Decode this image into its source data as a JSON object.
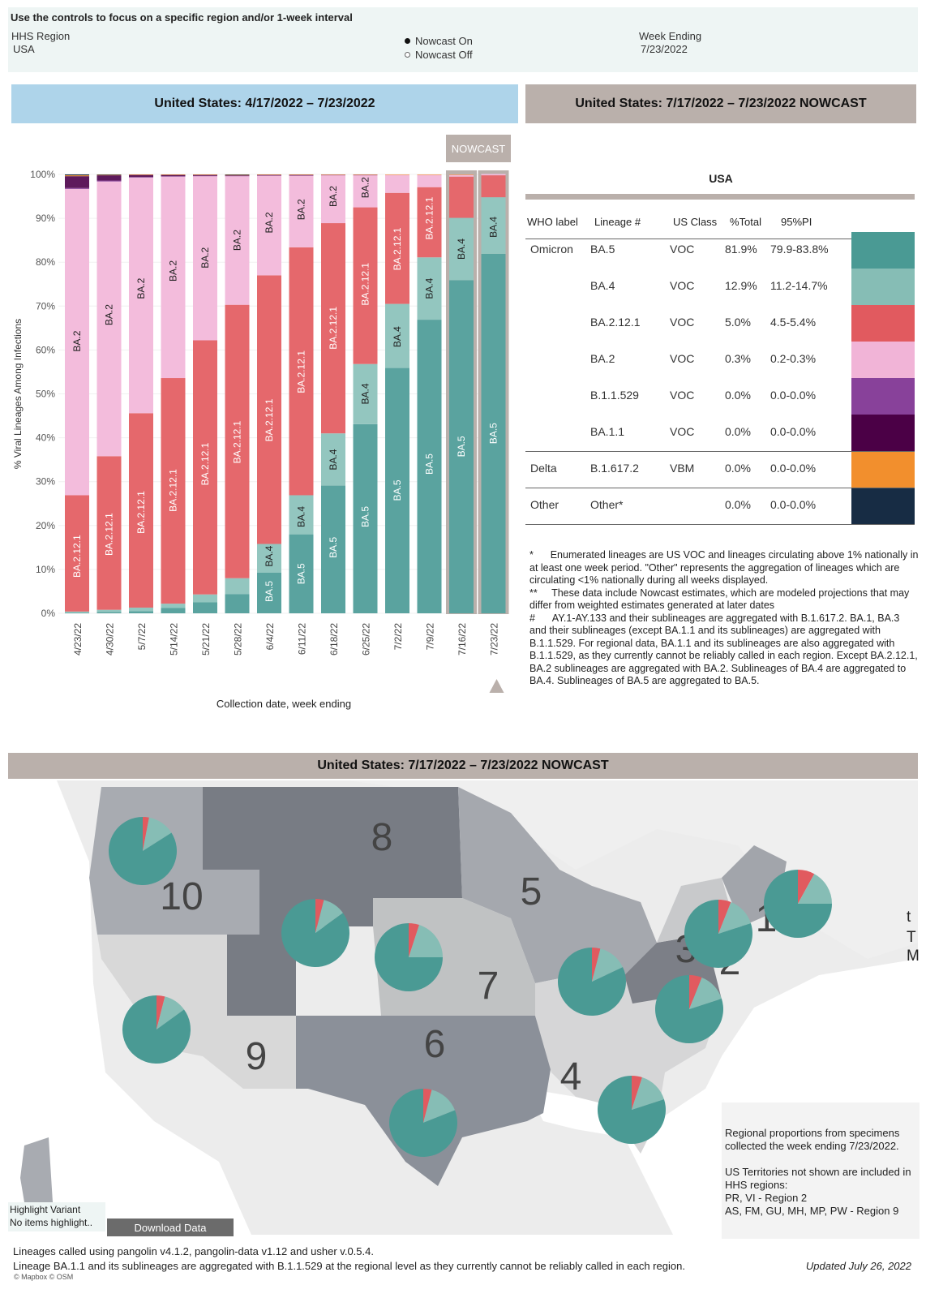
{
  "controls": {
    "title": "Use the controls to focus on a specific region and/or 1-week interval",
    "region_label": "HHS Region",
    "region_value": "USA",
    "nowcast_on": "Nowcast On",
    "nowcast_off": "Nowcast Off",
    "nowcast_selected": "on",
    "week_label": "Week Ending",
    "week_value": "7/23/2022"
  },
  "headers": {
    "left": "United States: 4/17/2022 – 7/23/2022",
    "right": "United States: 7/17/2022 – 7/23/2022 NOWCAST",
    "map": "United States: 7/17/2022 – 7/23/2022 NOWCAST"
  },
  "colors": {
    "BA.5": "#5aa39f",
    "BA.4": "#93c6bf",
    "BA.2.12.1": "#e5686c",
    "BA.2": "#f3bcdc",
    "B.1.1.529": "#87409a",
    "BA.1.1": "#5e1a5c",
    "B.1.617.2": "#f28f2d",
    "Other": "#172c44",
    "nowcast": "#bab0ab"
  },
  "chart_data": {
    "type": "bar",
    "stacked": true,
    "title": "United States: 4/17/2022 – 7/23/2022",
    "xlabel": "Collection date, week ending",
    "ylabel": "% Viral Lineages Among Infections",
    "ylim": [
      0,
      100
    ],
    "yticks": [
      "0%",
      "10%",
      "20%",
      "30%",
      "40%",
      "50%",
      "60%",
      "70%",
      "80%",
      "90%",
      "100%"
    ],
    "nowcast_label": "NOWCAST",
    "nowcast_categories": [
      "7/16/22",
      "7/23/22"
    ],
    "categories": [
      "4/23/22",
      "4/30/22",
      "5/7/22",
      "5/14/22",
      "5/21/22",
      "5/28/22",
      "6/4/22",
      "6/11/22",
      "6/18/22",
      "6/25/22",
      "7/2/22",
      "7/9/22",
      "7/16/22",
      "7/23/22"
    ],
    "series": [
      {
        "name": "BA.5",
        "values": [
          0.1,
          0.3,
          0.5,
          1.2,
          2.5,
          4.4,
          9.3,
          18.0,
          29.1,
          43.1,
          55.9,
          66.9,
          75.9,
          81.9
        ]
      },
      {
        "name": "BA.4",
        "values": [
          0.3,
          0.5,
          0.8,
          1.0,
          1.8,
          3.6,
          6.5,
          8.9,
          11.9,
          13.7,
          14.6,
          14.2,
          14.2,
          12.9
        ]
      },
      {
        "name": "BA.2.12.1",
        "values": [
          26.5,
          35.0,
          44.3,
          51.4,
          57.9,
          62.3,
          61.2,
          56.5,
          47.9,
          35.7,
          25.3,
          16.0,
          9.4,
          5.0
        ]
      },
      {
        "name": "BA.2",
        "values": [
          69.8,
          62.6,
          53.7,
          45.9,
          37.4,
          29.3,
          22.7,
          16.3,
          10.9,
          7.3,
          4.1,
          2.8,
          0.4,
          0.3
        ]
      },
      {
        "name": "B.1.1.529",
        "values": [
          0.2,
          0.2,
          0.1,
          0.1,
          0.1,
          0.1,
          0.1,
          0.1,
          0.1,
          0.1,
          0.0,
          0.0,
          0.0,
          0.0
        ]
      },
      {
        "name": "BA.1.1",
        "values": [
          2.7,
          1.2,
          0.5,
          0.3,
          0.2,
          0.1,
          0.1,
          0.1,
          0.0,
          0.0,
          0.0,
          0.0,
          0.0,
          0.0
        ]
      },
      {
        "name": "B.1.617.2",
        "values": [
          0.2,
          0.1,
          0.1,
          0.1,
          0.1,
          0.1,
          0.1,
          0.1,
          0.1,
          0.1,
          0.1,
          0.1,
          0.1,
          0.0
        ]
      },
      {
        "name": "Other",
        "values": [
          0.2,
          0.1,
          0.0,
          0.0,
          0.0,
          0.1,
          0.0,
          0.0,
          0.0,
          0.0,
          0.0,
          0.0,
          0.0,
          0.0
        ]
      }
    ],
    "bar_labels": [
      [
        [
          "BA.2.12.1",
          13
        ],
        [
          "BA.2",
          62
        ]
      ],
      [
        [
          "BA.2.12.1",
          18
        ],
        [
          "BA.2",
          68
        ]
      ],
      [
        [
          "BA.2.12.1",
          23
        ],
        [
          "BA.2",
          74
        ]
      ],
      [
        [
          "BA.2.12.1",
          28
        ],
        [
          "BA.2",
          78
        ]
      ],
      [
        [
          "BA.2.12.1",
          34
        ],
        [
          "BA.2",
          81
        ]
      ],
      [
        [
          "BA.2.12.1",
          39
        ],
        [
          "BA.2",
          85
        ]
      ],
      [
        [
          "BA.5",
          5
        ],
        [
          "BA.4",
          13
        ],
        [
          "BA.2.12.1",
          44
        ],
        [
          "BA.2",
          89
        ]
      ],
      [
        [
          "BA.5",
          9
        ],
        [
          "BA.4",
          22
        ],
        [
          "BA.2.12.1",
          55
        ],
        [
          "BA.2",
          92
        ]
      ],
      [
        [
          "BA.5",
          15
        ],
        [
          "BA.4",
          35
        ],
        [
          "BA.2.12.1",
          65
        ],
        [
          "BA.2",
          95
        ]
      ],
      [
        [
          "BA.5",
          22
        ],
        [
          "BA.4",
          50
        ],
        [
          "BA.2.12.1",
          75
        ],
        [
          "BA.2",
          97
        ]
      ],
      [
        [
          "BA.5",
          28
        ],
        [
          "BA.4",
          63
        ],
        [
          "BA.2.12.1",
          83
        ]
      ],
      [
        [
          "BA.5",
          34
        ],
        [
          "BA.4",
          74
        ],
        [
          "BA.2.12.1",
          90
        ]
      ],
      [
        [
          "BA.5",
          38
        ],
        [
          "BA.4",
          83
        ]
      ],
      [
        [
          "BA.5",
          41
        ],
        [
          "BA.4",
          88
        ]
      ]
    ]
  },
  "table": {
    "region": "USA",
    "columns": [
      "WHO label",
      "Lineage #",
      "US Class",
      "%Total",
      "95%PI"
    ],
    "rows": [
      {
        "who": "Omicron",
        "lineage": "BA.5",
        "class": "VOC",
        "total": "81.9%",
        "pi": "79.9-83.8%",
        "color": "#4a9a94"
      },
      {
        "who": "",
        "lineage": "BA.4",
        "class": "VOC",
        "total": "12.9%",
        "pi": "11.2-14.7%",
        "color": "#86bdb5"
      },
      {
        "who": "",
        "lineage": "BA.2.12.1",
        "class": "VOC",
        "total": "5.0%",
        "pi": "4.5-5.4%",
        "color": "#e15a5f"
      },
      {
        "who": "",
        "lineage": "BA.2",
        "class": "VOC",
        "total": "0.3%",
        "pi": "0.2-0.3%",
        "color": "#f1b4d7"
      },
      {
        "who": "",
        "lineage": "B.1.1.529",
        "class": "VOC",
        "total": "0.0%",
        "pi": "0.0-0.0%",
        "color": "#88419a"
      },
      {
        "who": "",
        "lineage": "BA.1.1",
        "class": "VOC",
        "total": "0.0%",
        "pi": "0.0-0.0%",
        "color": "#4b0046"
      },
      {
        "who": "Delta",
        "lineage": "B.1.617.2",
        "class": "VBM",
        "total": "0.0%",
        "pi": "0.0-0.0%",
        "color": "#f28f2d"
      },
      {
        "who": "Other",
        "lineage": "Other*",
        "class": "",
        "total": "0.0%",
        "pi": "0.0-0.0%",
        "color": "#172c44"
      }
    ]
  },
  "notes": [
    "*      Enumerated lineages are US VOC and lineages circulating above 1% nationally in at least one week period. \"Other\" represents the aggregation of lineages which are circulating <1% nationally during all weeks displayed.",
    "**     These data include Nowcast estimates, which are modeled projections that may differ from weighted estimates generated at later dates",
    "#      AY.1-AY.133 and their sublineages are aggregated with B.1.617.2. BA.1, BA.3 and their sublineages (except BA.1.1 and its sublineages) are aggregated with B.1.1.529. For regional data, BA.1.1 and its sublineages are also aggregated with B.1.1.529, as they currently cannot be reliably called in each region. Except BA.2.12.1, BA.2 sublineages are aggregated with BA.2. Sublineages of BA.4 are aggregated to BA.4. Sublineages of BA.5 are aggregated to BA.5."
  ],
  "map": {
    "regions": [
      {
        "id": "1",
        "label": "1",
        "pie": {
          "BA.5": 80,
          "BA.4": 14,
          "BA.2.12.1": 6
        }
      },
      {
        "id": "2",
        "label": "2",
        "pie": {
          "BA.5": 80,
          "BA.4": 14,
          "BA.2.12.1": 6
        }
      },
      {
        "id": "3",
        "label": "3",
        "pie": {
          "BA.5": 75,
          "BA.4": 17,
          "BA.2.12.1": 8
        }
      },
      {
        "id": "4",
        "label": "4",
        "pie": {
          "BA.5": 80,
          "BA.4": 15,
          "BA.2.12.1": 5
        }
      },
      {
        "id": "5",
        "label": "5",
        "pie": {
          "BA.5": 82,
          "BA.4": 14,
          "BA.2.12.1": 4
        }
      },
      {
        "id": "6",
        "label": "6",
        "pie": {
          "BA.5": 81,
          "BA.4": 15,
          "BA.2.12.1": 4
        }
      },
      {
        "id": "7",
        "label": "7",
        "pie": {
          "BA.5": 75,
          "BA.4": 20,
          "BA.2.12.1": 5
        }
      },
      {
        "id": "8",
        "label": "8",
        "pie": {
          "BA.5": 85,
          "BA.4": 11,
          "BA.2.12.1": 4
        }
      },
      {
        "id": "9",
        "label": "9",
        "pie": {
          "BA.5": 85,
          "BA.4": 11,
          "BA.2.12.1": 4
        }
      },
      {
        "id": "10",
        "label": "10",
        "pie": {
          "BA.5": 84,
          "BA.4": 13,
          "BA.2.12.1": 3
        }
      }
    ],
    "info": [
      "Regional proportions from specimens collected the week ending 7/23/2022.",
      "US Territories not shown are included in HHS regions:",
      "PR, VI - Region 2",
      "AS, FM, GU, MH, MP, PW - Region 9"
    ],
    "highlight_label": "Highlight Variant",
    "highlight_value": "No items highlight..",
    "download_label": "Download Data",
    "attribution": "© Mapbox © OSM",
    "clipped_text": [
      "t",
      "T",
      "M"
    ]
  },
  "footer": {
    "line1": "Lineages called using pangolin v4.1.2, pangolin-data v1.12 and usher v.0.5.4.",
    "line2": "Lineage BA.1.1 and its sublineages are aggregated with B.1.1.529 at the regional level as they currently cannot be reliably called in each region.",
    "updated": "Updated July 26, 2022"
  }
}
